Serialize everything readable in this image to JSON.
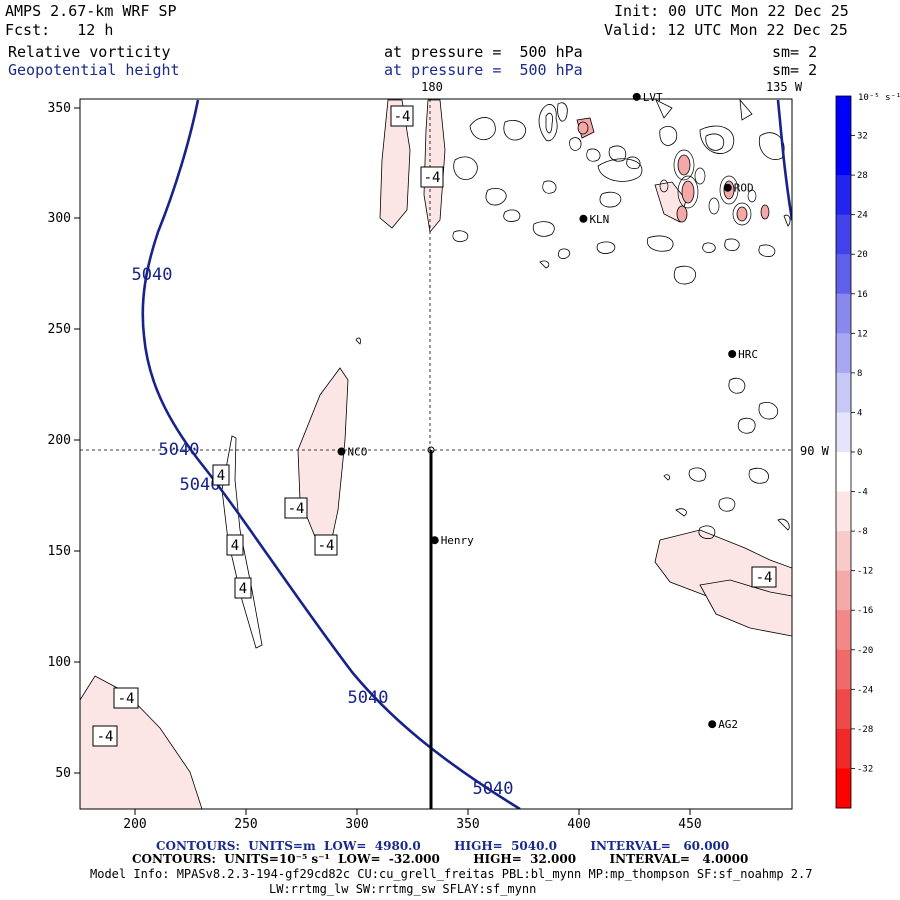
{
  "header": {
    "model": "AMPS 2.67-km WRF SP",
    "init": "Init: 00 UTC Mon 22 Dec 25",
    "fcst": "Fcst:   12 h",
    "valid": "Valid: 12 UTC Mon 22 Dec 25",
    "field1": {
      "name": "Relative vorticity",
      "level": "at pressure =  500 hPa",
      "sm": "sm= 2"
    },
    "field2": {
      "name": "Geopotential height",
      "level": "at pressure =  500 hPa",
      "sm": "sm= 2"
    }
  },
  "map": {
    "meridian_labels": [
      "180",
      "135 W"
    ],
    "parallel_label": "90 W",
    "x_ticks": [
      "200",
      "250",
      "300",
      "350",
      "400",
      "450"
    ],
    "y_ticks": [
      "350",
      "300",
      "250",
      "200",
      "150",
      "100",
      "50"
    ],
    "stations": [
      {
        "id": "LVT",
        "x": 426,
        "y": 355
      },
      {
        "id": "ROD",
        "x": 467,
        "y": 314
      },
      {
        "id": "KLN",
        "x": 402,
        "y": 300
      },
      {
        "id": "HRC",
        "x": 469,
        "y": 239
      },
      {
        "id": "NCO",
        "x": 293,
        "y": 195
      },
      {
        "id": "Henry",
        "x": 335,
        "y": 155
      },
      {
        "id": "AG2",
        "x": 460,
        "y": 72
      }
    ],
    "height_contour_labels": [
      "5040",
      "5040",
      "5040",
      "5040",
      "5040"
    ],
    "vorticity_contour_labels": [
      "-4",
      "-4",
      "4",
      "-4",
      "-4",
      "4",
      "4",
      "-4",
      "-4",
      "-4"
    ],
    "hatched_label": "-4"
  },
  "colorbar": {
    "unit": "10⁻⁵ s⁻¹",
    "levels": [
      "32",
      "28",
      "24",
      "20",
      "16",
      "12",
      "8",
      "4",
      "0",
      "-4",
      "-8",
      "-12",
      "-16",
      "-20",
      "-24",
      "-28",
      "-32"
    ],
    "colors": [
      "#0000ff",
      "#2424f0",
      "#4242ea",
      "#6060ea",
      "#8888ee",
      "#a8a8f2",
      "#c8c8f6",
      "#e4e4fa",
      "#ffffff",
      "#fbe5e5",
      "#f8caca",
      "#f5aaaa",
      "#f28888",
      "#f06a6a",
      "#ee4a4a",
      "#f02828",
      "#ff0000"
    ]
  },
  "footer": {
    "line1": "CONTOURS:  UNITS=m  LOW=  4980.0        HIGH=  5040.0        INTERVAL=   60.000",
    "line2": "CONTOURS:  UNITS=10⁻⁵ s⁻¹  LOW=  -32.000        HIGH=  32.000        INTERVAL=   4.0000",
    "line3": "Model Info: MPASv8.2.3-194-gf29cd82c CU:cu_grell_freitas PBL:bl_mynn MP:mp_thompson SF:sf_noahmp 2.7",
    "line4": "LW:rrtmg_lw SW:rrtmg_sw SFLAY:sf_mynn"
  }
}
